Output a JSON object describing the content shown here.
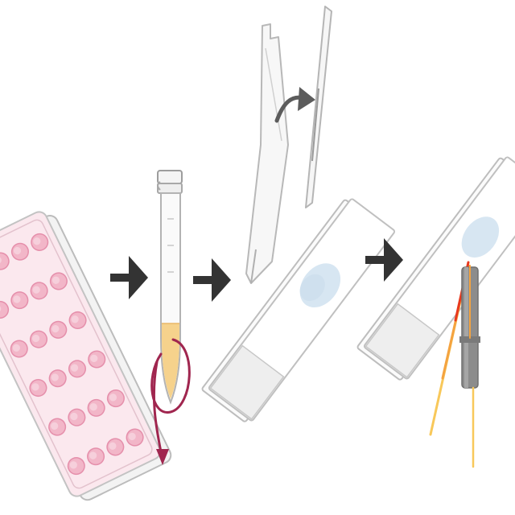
{
  "diagram": {
    "steps": [
      {
        "id": "culture-plate",
        "icon": "well-plate-icon",
        "well_rows": 4,
        "well_cols": 6
      },
      {
        "id": "centrifuge-tube",
        "icon": "centrifuge-tube-icon"
      },
      {
        "id": "smear-slide",
        "icon": "smear-slide-icon"
      },
      {
        "id": "laser-analysis",
        "icon": "laser-slide-icon"
      }
    ],
    "colors": {
      "outline": "#b9b9b9",
      "plate_fill": "#fbe8ee",
      "well_fill": "#f2b6c8",
      "well_rim": "#e58fab",
      "arrow": "#333333",
      "pellet": "#f6d28c",
      "rotation_arrow": "#a0264f",
      "smear": "#d7e6f2",
      "objective": "#8c8c8c",
      "laser_red": "#e8391d",
      "laser_orange": "#f4a340",
      "laser_yellow": "#f8c85a"
    }
  }
}
